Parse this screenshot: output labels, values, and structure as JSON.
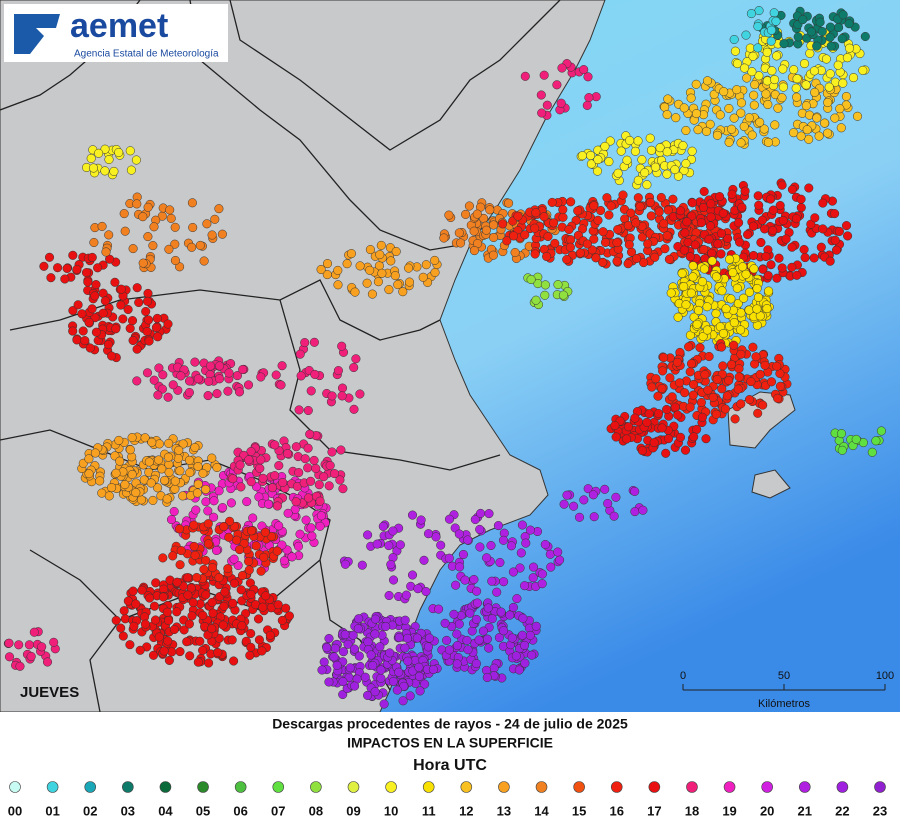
{
  "logo": {
    "name": "aemet",
    "subtitle": "Agencia Estatal de Meteorología"
  },
  "map": {
    "day_label": "JUEVES",
    "scale_bar": {
      "ticks": [
        0,
        50,
        100
      ],
      "unit": "Kilómetros"
    }
  },
  "caption": {
    "title": "Descargas procedentes de rayos - 24 de julio de 2025",
    "subtitle": "IMPACTOS EN LA SUPERFICIE",
    "legend_title": "Hora UTC"
  },
  "legend": [
    {
      "label": "00",
      "color": "#c8fbf3"
    },
    {
      "label": "01",
      "color": "#40d4e0"
    },
    {
      "label": "02",
      "color": "#1aa8b8"
    },
    {
      "label": "03",
      "color": "#0e7a6a"
    },
    {
      "label": "04",
      "color": "#0a6a3a"
    },
    {
      "label": "05",
      "color": "#2a8a2a"
    },
    {
      "label": "06",
      "color": "#4ec040"
    },
    {
      "label": "07",
      "color": "#60e040"
    },
    {
      "label": "08",
      "color": "#90e040"
    },
    {
      "label": "09",
      "color": "#e0f040"
    },
    {
      "label": "10",
      "color": "#f8f020"
    },
    {
      "label": "11",
      "color": "#f8e000"
    },
    {
      "label": "12",
      "color": "#f8c020"
    },
    {
      "label": "13",
      "color": "#f8a020"
    },
    {
      "label": "14",
      "color": "#f08020"
    },
    {
      "label": "15",
      "color": "#f05010"
    },
    {
      "label": "16",
      "color": "#f02010"
    },
    {
      "label": "17",
      "color": "#e81010"
    },
    {
      "label": "18",
      "color": "#f0207a"
    },
    {
      "label": "19",
      "color": "#f020c0"
    },
    {
      "label": "20",
      "color": "#d020e0"
    },
    {
      "label": "21",
      "color": "#b020e0"
    },
    {
      "label": "22",
      "color": "#a020e0"
    },
    {
      "label": "23",
      "color": "#9020d0"
    }
  ]
}
